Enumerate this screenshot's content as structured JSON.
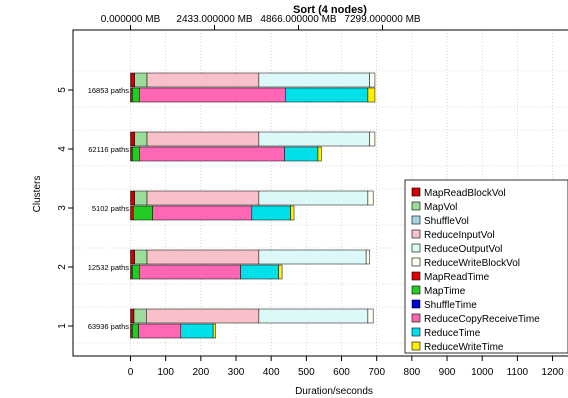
{
  "chart_data": {
    "type": "bar",
    "orientation": "horizontal",
    "stacked": true,
    "title": "Sort (4 nodes)",
    "xlabel": "Duration/seconds",
    "ylabel": "Clusters",
    "xlim": [
      -150,
      1200
    ],
    "x_ticks": [
      "0",
      "100",
      "200",
      "300",
      "400",
      "500",
      "600",
      "700",
      "800",
      "900",
      "1000",
      "1100",
      "1200"
    ],
    "x_tick_values": [
      0,
      100,
      200,
      300,
      400,
      500,
      600,
      700,
      800,
      900,
      1000,
      1100,
      1200
    ],
    "top_axis_ticks": [
      "0.000000 MB",
      "2433.000000 MB",
      "4866.000000 MB",
      "7299.000000 MB"
    ],
    "top_axis_values": [
      0,
      2433,
      4866,
      7299
    ],
    "top_axis_max": 12165,
    "grid": true,
    "legend_position": "bottom-right",
    "clusters": [
      {
        "label": "1",
        "paths": "63936 paths",
        "volume_bar": {
          "MapReadBlockVol": 10,
          "MapVol": 35,
          "ShuffleVol": 0,
          "ReduceInputVol": 320,
          "ReduceOutputVol": 310,
          "ReduceWriteBlockVol": 15
        },
        "time_bar": {
          "MapReadTime": 5,
          "MapTime": 18,
          "ShuffleTime": 0,
          "ReduceCopyReceiveTime": 120,
          "ReduceTime": 92,
          "ReduceWriteTime": 7
        }
      },
      {
        "label": "2",
        "paths": "12532 paths",
        "volume_bar": {
          "MapReadBlockVol": 12,
          "MapVol": 35,
          "ShuffleVol": 0,
          "ReduceInputVol": 318,
          "ReduceOutputVol": 305,
          "ReduceWriteBlockVol": 10
        },
        "time_bar": {
          "MapReadTime": 5,
          "MapTime": 20,
          "ShuffleTime": 0,
          "ReduceCopyReceiveTime": 288,
          "ReduceTime": 108,
          "ReduceWriteTime": 10
        }
      },
      {
        "label": "3",
        "paths": "5102 paths",
        "volume_bar": {
          "MapReadBlockVol": 12,
          "MapVol": 35,
          "ShuffleVol": 0,
          "ReduceInputVol": 318,
          "ReduceOutputVol": 310,
          "ReduceWriteBlockVol": 15
        },
        "time_bar": {
          "MapReadTime": 8,
          "MapTime": 55,
          "ShuffleTime": 0,
          "ReduceCopyReceiveTime": 282,
          "ReduceTime": 110,
          "ReduceWriteTime": 10
        }
      },
      {
        "label": "4",
        "paths": "62116 paths",
        "volume_bar": {
          "MapReadBlockVol": 12,
          "MapVol": 35,
          "ShuffleVol": 0,
          "ReduceInputVol": 318,
          "ReduceOutputVol": 315,
          "ReduceWriteBlockVol": 15
        },
        "time_bar": {
          "MapReadTime": 5,
          "MapTime": 20,
          "ShuffleTime": 0,
          "ReduceCopyReceiveTime": 413,
          "ReduceTime": 95,
          "ReduceWriteTime": 10
        }
      },
      {
        "label": "5",
        "paths": "16853 paths",
        "volume_bar": {
          "MapReadBlockVol": 12,
          "MapVol": 35,
          "ShuffleVol": 0,
          "ReduceInputVol": 318,
          "ReduceOutputVol": 315,
          "ReduceWriteBlockVol": 15
        },
        "time_bar": {
          "MapReadTime": 5,
          "MapTime": 20,
          "ShuffleTime": 0,
          "ReduceCopyReceiveTime": 415,
          "ReduceTime": 235,
          "ReduceWriteTime": 20
        }
      }
    ],
    "legend": [
      {
        "key": "MapReadBlockVol",
        "label": "MapReadBlockVol",
        "color": "#cc0000"
      },
      {
        "key": "MapVol",
        "label": "MapVol",
        "color": "#99dd99"
      },
      {
        "key": "ShuffleVol",
        "label": "ShuffleVol",
        "color": "#a6d8e6"
      },
      {
        "key": "ReduceInputVol",
        "label": "ReduceInputVol",
        "color": "#f8c0c8"
      },
      {
        "key": "ReduceOutputVol",
        "label": "ReduceOutputVol",
        "color": "#ddf8f8"
      },
      {
        "key": "ReduceWriteBlockVol",
        "label": "ReduceWriteBlockVol",
        "color": "#fffff0"
      },
      {
        "key": "MapReadTime",
        "label": "MapReadTime",
        "color": "#dd0000"
      },
      {
        "key": "MapTime",
        "label": "MapTime",
        "color": "#22cc22"
      },
      {
        "key": "ShuffleTime",
        "label": "ShuffleTime",
        "color": "#0000cc"
      },
      {
        "key": "ReduceCopyReceiveTime",
        "label": "ReduceCopyReceiveTime",
        "color": "#ff66b4"
      },
      {
        "key": "ReduceTime",
        "label": "ReduceTime",
        "color": "#00e0e8"
      },
      {
        "key": "ReduceWriteTime",
        "label": "ReduceWriteTime",
        "color": "#ffee00"
      }
    ]
  }
}
